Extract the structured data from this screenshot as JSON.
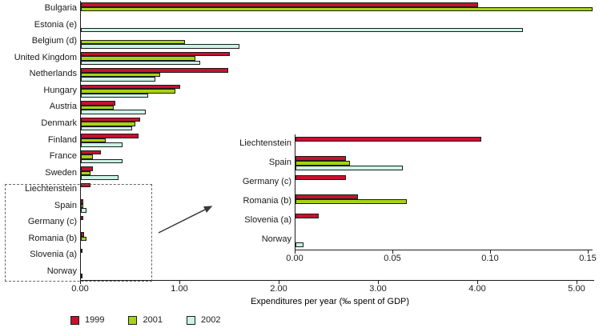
{
  "figure": {
    "x_axis_title": "Expenditures per year (‰ spent of GDP)"
  },
  "legend": {
    "position": "bottom-left",
    "items": [
      {
        "label": "1999",
        "color": "#C8102E"
      },
      {
        "label": "2001",
        "color": "#A6D313"
      },
      {
        "label": "2002",
        "color": "#CBF3E5"
      }
    ]
  },
  "chart_data": [
    {
      "id": "main",
      "type": "bar",
      "orientation": "horizontal",
      "title": "",
      "xlabel": "Expenditures per year (‰ spent of GDP)",
      "xlim": [
        0,
        5.2
      ],
      "grid": false,
      "x_ticks": [
        "0.00",
        "1.00",
        "2.00",
        "3.00",
        "4.00",
        "5.00"
      ],
      "x_tick_values": [
        0,
        1,
        2,
        3,
        4,
        5
      ],
      "categories": [
        "Bulgaria",
        "Estonia (e)",
        "Belgium (d)",
        "United Kingdom",
        "Netherlands",
        "Hungary",
        "Austria",
        "Denmark",
        "Finland",
        "France",
        "Sweden",
        "Liechtenstein",
        "Spain",
        "Germany (c)",
        "Romania (b)",
        "Slovenia (a)",
        "Norway"
      ],
      "series": [
        {
          "name": "1999",
          "color": "#C8102E",
          "values": [
            4.0,
            0,
            0,
            1.5,
            1.48,
            1.0,
            0.35,
            0.6,
            0.58,
            0.2,
            0.12,
            0.095,
            0.026,
            0.026,
            0.032,
            0.012,
            0
          ]
        },
        {
          "name": "2001",
          "color": "#A6D313",
          "values": [
            5.15,
            0,
            1.05,
            1.15,
            0.8,
            0.95,
            0.33,
            0.55,
            0.25,
            0.12,
            0.1,
            0,
            0.028,
            0,
            0.057,
            0,
            0
          ]
        },
        {
          "name": "2002",
          "color": "#CBF3E5",
          "values": [
            0,
            4.45,
            1.6,
            1.2,
            0.75,
            0.68,
            0.65,
            0.52,
            0.42,
            0.42,
            0.38,
            0,
            0.055,
            0,
            0,
            0,
            0.004
          ]
        }
      ]
    },
    {
      "id": "inset",
      "type": "bar",
      "orientation": "horizontal",
      "title": "",
      "xlabel": "",
      "xlim": [
        0,
        0.15
      ],
      "grid": false,
      "x_ticks": [
        "0.00",
        "0.05",
        "0.10",
        "0.15"
      ],
      "x_tick_values": [
        0,
        0.05,
        0.1,
        0.15
      ],
      "categories": [
        "Liechtenstein",
        "Spain",
        "Germany (c)",
        "Romania (b)",
        "Slovenia (a)",
        "Norway"
      ],
      "series": [
        {
          "name": "1999",
          "color": "#C8102E",
          "values": [
            0.095,
            0.026,
            0.026,
            0.032,
            0.012,
            0
          ]
        },
        {
          "name": "2001",
          "color": "#A6D313",
          "values": [
            0,
            0.028,
            0,
            0.057,
            0,
            0
          ]
        },
        {
          "name": "2002",
          "color": "#CBF3E5",
          "values": [
            0,
            0.055,
            0,
            0,
            0,
            0.004
          ]
        }
      ]
    }
  ]
}
